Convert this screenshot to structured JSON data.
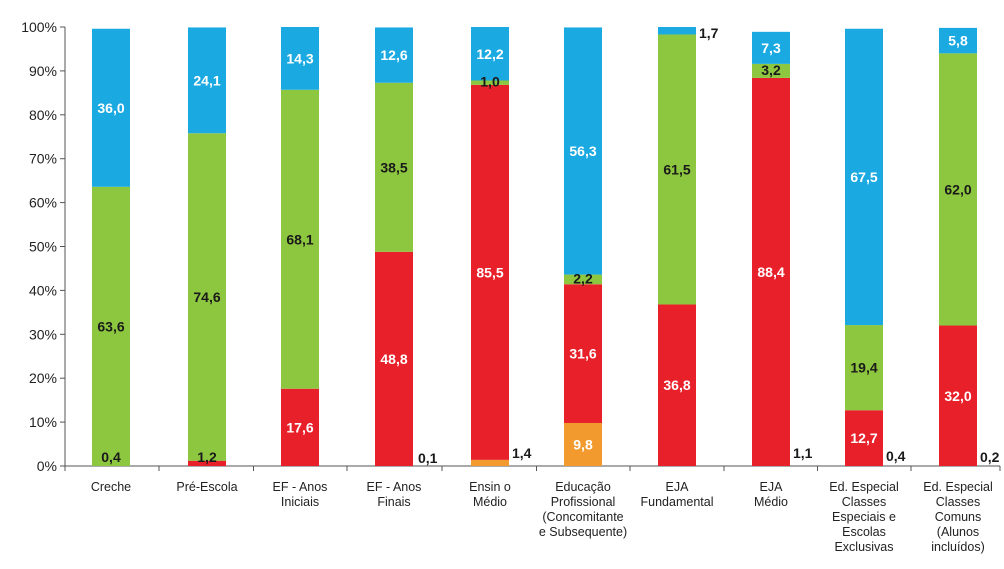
{
  "chart_data": {
    "type": "bar",
    "stacked": true,
    "percent": true,
    "ylim": [
      0,
      100
    ],
    "yticks": [
      "0%",
      "10%",
      "20%",
      "30%",
      "40%",
      "50%",
      "60%",
      "70%",
      "80%",
      "90%",
      "100%"
    ],
    "grid": false,
    "categories": [
      [
        "Creche"
      ],
      [
        "Pré-Escola"
      ],
      [
        "EF - Anos",
        "Iniciais"
      ],
      [
        "EF - Anos",
        "Finais"
      ],
      [
        "Ensin o",
        "Médio"
      ],
      [
        "Educação",
        "Profissional",
        "(Concomitante",
        "e Subsequente)"
      ],
      [
        "EJA",
        "Fundamental"
      ],
      [
        "EJA",
        "Médio"
      ],
      [
        "Ed. Especial",
        "Classes",
        "Especiais e",
        "Escolas",
        "Exclusivas"
      ],
      [
        "Ed. Especial",
        "Classes",
        "Comuns",
        "(Alunos",
        "incluídos)"
      ]
    ],
    "series": [
      {
        "color": "#f39a2e",
        "values": [
          0.0,
          0.0,
          0.0,
          0.0,
          1.4,
          9.8,
          0.0,
          0.0,
          0.0,
          0.0
        ],
        "labels": [
          "",
          "",
          "",
          "",
          "",
          "9,8",
          "",
          "",
          "",
          ""
        ]
      },
      {
        "color": "#e8202a",
        "values": [
          0.0,
          1.2,
          17.6,
          48.8,
          85.5,
          31.6,
          36.8,
          88.4,
          12.7,
          32.0
        ],
        "labels": [
          "",
          "",
          "17,6",
          "48,8",
          "85,5",
          "31,6",
          "36,8",
          "88,4",
          "12,7",
          "32,0"
        ]
      },
      {
        "color": "#8dc63f",
        "values": [
          63.6,
          74.6,
          68.1,
          38.5,
          1.0,
          2.2,
          61.5,
          3.2,
          19.4,
          62.0
        ],
        "labels": [
          "63,6",
          "74,6",
          "68,1",
          "38,5",
          "1,0",
          "2,2",
          "61,5",
          "3,2",
          "19,4",
          "62,0"
        ]
      },
      {
        "color": "#1ba9e1",
        "values": [
          36.0,
          24.1,
          14.3,
          12.6,
          12.2,
          56.3,
          1.7,
          7.3,
          67.5,
          5.8
        ],
        "labels": [
          "36,0",
          "24,1",
          "14,3",
          "12,6",
          "12,2",
          "56,3",
          "",
          "7,3",
          "67,5",
          "5,8"
        ]
      }
    ],
    "small_values": [
      {
        "category": 0,
        "label": "0,4"
      },
      {
        "category": 1,
        "label": "1,2"
      },
      {
        "category": 3,
        "label": "0,1"
      },
      {
        "category": 4,
        "label": "1,4"
      },
      {
        "category": 6,
        "label": "1,7"
      },
      {
        "category": 7,
        "label": "1,1"
      },
      {
        "category": 8,
        "label": "0,4"
      },
      {
        "category": 9,
        "label": "0,2"
      }
    ]
  }
}
